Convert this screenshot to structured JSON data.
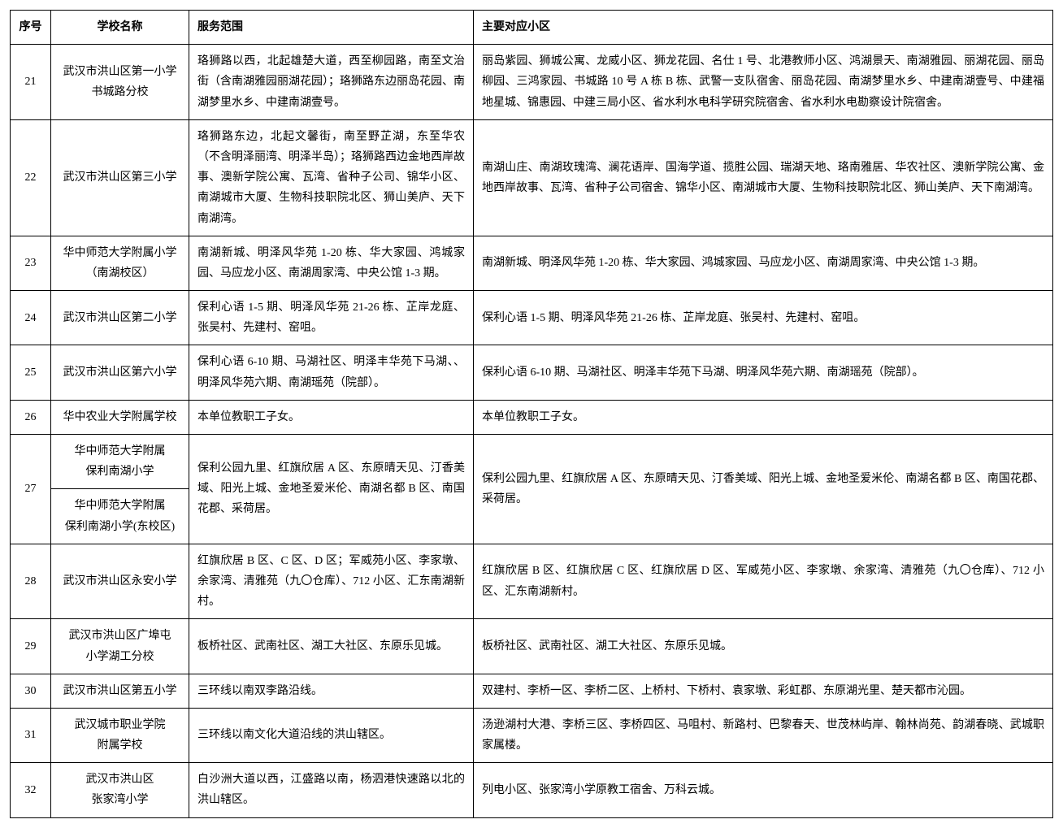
{
  "table": {
    "headers": {
      "seq": "序号",
      "school": "学校名称",
      "scope": "服务范围",
      "community": "主要对应小区"
    },
    "rows": [
      {
        "seq": "21",
        "school": "武汉市洪山区第一小学\n书城路分校",
        "scope": "珞狮路以西，北起雄楚大道，西至柳园路，南至文治街（含南湖雅园丽湖花园）；珞狮路东边丽岛花园、南湖梦里水乡、中建南湖壹号。",
        "community": "丽岛紫园、狮城公寓、龙威小区、狮龙花园、名仕 1 号、北港教师小区、鸿湖景天、南湖雅园、丽湖花园、丽岛柳园、三鸿家园、书城路 10 号 A 栋 B 栋、武警一支队宿舍、丽岛花园、南湖梦里水乡、中建南湖壹号、中建福地星城、锦惠园、中建三局小区、省水利水电科学研究院宿舍、省水利水电勘察设计院宿舍。"
      },
      {
        "seq": "22",
        "school": "武汉市洪山区第三小学",
        "scope": "珞狮路东边，北起文馨街，南至野芷湖，东至华农（不含明泽丽湾、明泽半岛）；珞狮路西边金地西岸故事、澳新学院公寓、瓦湾、省种子公司、锦华小区、南湖城市大厦、生物科技职院北区、狮山美庐、天下南湖湾。",
        "community": "南湖山庄、南湖玫瑰湾、澜花语岸、国海学道、揽胜公园、瑞湖天地、珞南雅居、华农社区、澳新学院公寓、金地西岸故事、瓦湾、省种子公司宿舍、锦华小区、南湖城市大厦、生物科技职院北区、狮山美庐、天下南湖湾。"
      },
      {
        "seq": "23",
        "school": "华中师范大学附属小学\n（南湖校区）",
        "scope": "南湖新城、明泽风华苑 1-20 栋、华大家园、鸿城家园、马应龙小区、南湖周家湾、中央公馆 1-3 期。",
        "community": "南湖新城、明泽风华苑 1-20 栋、华大家园、鸿城家园、马应龙小区、南湖周家湾、中央公馆 1-3 期。"
      },
      {
        "seq": "24",
        "school": "武汉市洪山区第二小学",
        "scope": "保利心语 1-5 期、明泽风华苑 21-26 栋、芷岸龙庭、张吴村、先建村、窑咀。",
        "community": "保利心语 1-5 期、明泽风华苑 21-26 栋、芷岸龙庭、张吴村、先建村、窑咀。"
      },
      {
        "seq": "25",
        "school": "武汉市洪山区第六小学",
        "scope": "保利心语 6-10 期、马湖社区、明泽丰华苑下马湖、、明泽风华苑六期、南湖瑶苑（院部）。",
        "community": "保利心语 6-10 期、马湖社区、明泽丰华苑下马湖、明泽风华苑六期、南湖瑶苑（院部）。"
      },
      {
        "seq": "26",
        "school": "华中农业大学附属学校",
        "scope": "本单位教职工子女。",
        "community": "本单位教职工子女。"
      },
      {
        "seq": "27",
        "school_a": "华中师范大学附属\n保利南湖小学",
        "school_b": "华中师范大学附属\n保利南湖小学(东校区)",
        "scope": "保利公园九里、红旗欣居 A 区、东原晴天见、汀香美域、阳光上城、金地圣爱米伦、南湖名都 B 区、南国花郡、采荷居。",
        "community": "保利公园九里、红旗欣居 A 区、东原晴天见、汀香美域、阳光上城、金地圣爱米伦、南湖名都 B 区、南国花郡、采荷居。"
      },
      {
        "seq": "28",
        "school": "武汉市洪山区永安小学",
        "scope": "红旗欣居 B 区、C 区、D 区；军威苑小区、李家墩、余家湾、清雅苑（九〇仓库）、712 小区、汇东南湖新村。",
        "community": "红旗欣居 B 区、红旗欣居 C 区、红旗欣居 D 区、军威苑小区、李家墩、余家湾、清雅苑（九〇仓库）、712 小区、汇东南湖新村。"
      },
      {
        "seq": "29",
        "school": "武汉市洪山区广埠屯\n小学湖工分校",
        "scope": "板桥社区、武南社区、湖工大社区、东原乐见城。",
        "community": "板桥社区、武南社区、湖工大社区、东原乐见城。"
      },
      {
        "seq": "30",
        "school": "武汉市洪山区第五小学",
        "scope": "三环线以南双李路沿线。",
        "community": "双建村、李桥一区、李桥二区、上桥村、下桥村、袁家墩、彩虹郡、东原湖光里、楚天都市沁园。"
      },
      {
        "seq": "31",
        "school": "武汉城市职业学院\n附属学校",
        "scope": "三环线以南文化大道沿线的洪山辖区。",
        "community": "汤逊湖村大港、李桥三区、李桥四区、马咀村、新路村、巴黎春天、世茂林屿岸、翰林尚苑、韵湖春晓、武城职家属楼。"
      },
      {
        "seq": "32",
        "school": "武汉市洪山区\n张家湾小学",
        "scope": "白沙洲大道以西，江盛路以南，杨泗港快速路以北的洪山辖区。",
        "community": "列电小区、张家湾小学原教工宿舍、万科云城。"
      }
    ]
  },
  "styling": {
    "background_color": "#ffffff",
    "border_color": "#000000",
    "text_color": "#000000",
    "font_family": "SimSun",
    "base_fontsize": 14,
    "line_height": 1.8,
    "col_widths": {
      "seq": 50,
      "school": 170,
      "scope": 350
    }
  }
}
